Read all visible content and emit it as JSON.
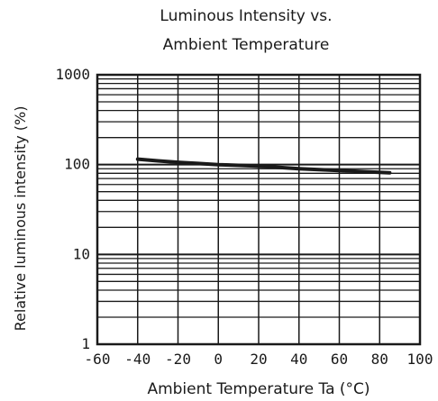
{
  "chart_data": {
    "type": "line",
    "title": [
      "Luminous Intensity vs.",
      "Ambient Temperature"
    ],
    "xlabel": "Ambient Temperature Ta (°C)",
    "ylabel": "Relative luminous intensity  (%)",
    "x_scale": "linear",
    "y_scale": "log",
    "xlim": [
      -60,
      100
    ],
    "ylim": [
      1,
      1000
    ],
    "x_ticks": [
      -60,
      -40,
      -20,
      0,
      20,
      40,
      60,
      80,
      100
    ],
    "x_tick_labels": [
      "-60",
      "-40",
      "-20",
      "0",
      "20",
      "40",
      "60",
      "80",
      "100"
    ],
    "y_ticks": [
      1,
      10,
      100,
      1000
    ],
    "y_tick_labels": [
      "1",
      "10",
      "100",
      "1000"
    ],
    "grid": true,
    "series": [
      {
        "x": [
          -40,
          -30,
          -20,
          -10,
          0,
          10,
          20,
          30,
          40,
          50,
          60,
          70,
          80,
          85
        ],
        "y": [
          115,
          110,
          106,
          103,
          100,
          98,
          96,
          93,
          90,
          88,
          86,
          84,
          82,
          81
        ]
      }
    ],
    "line_color": "#1a1a1a",
    "grid_color": "#1a1a1a"
  }
}
